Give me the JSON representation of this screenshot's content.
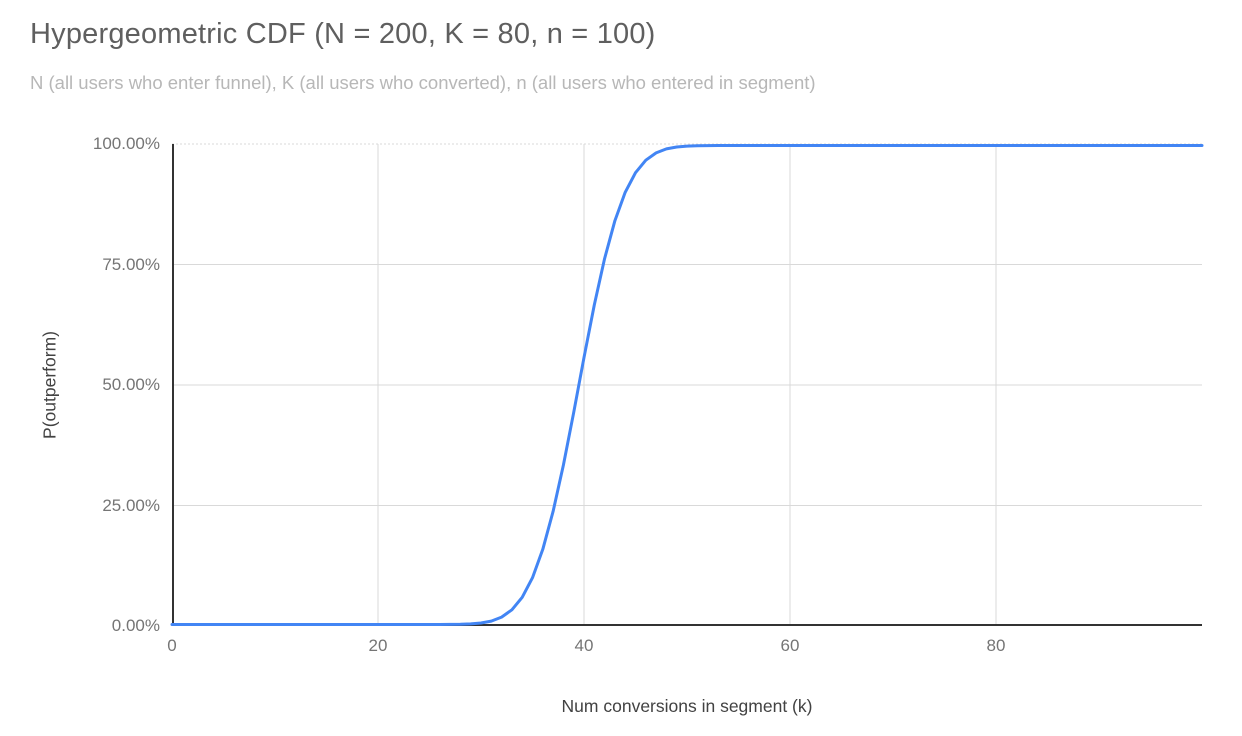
{
  "header": {
    "title": "Hypergeometric CDF (N = 200, K = 80, n = 100)",
    "subtitle": "N (all users who enter funnel), K (all users who converted), n (all users who entered in segment)"
  },
  "chart_data": {
    "type": "line",
    "title": "Hypergeometric CDF (N = 200, K = 80, n = 100)",
    "subtitle": "N (all users who enter funnel), K (all users who converted), n (all users who entered in segment)",
    "xlabel": "Num conversions in segment (k)",
    "ylabel": "P(outperform)",
    "xlim": [
      0,
      100
    ],
    "ylim": [
      0,
      1
    ],
    "x_ticks": [
      0,
      20,
      40,
      60,
      80
    ],
    "y_tick_labels": [
      "0.00%",
      "25.00%",
      "50.00%",
      "75.00%",
      "100.00%"
    ],
    "grid": "on",
    "legend_position": "none",
    "line_color": "#4285f4",
    "grid_color": "#d9d9d9",
    "axis_line_color": "#333333",
    "series": [
      {
        "name": "P(outperform)",
        "x": [
          0,
          25,
          26,
          27,
          28,
          29,
          30,
          31,
          32,
          33,
          34,
          35,
          36,
          37,
          38,
          39,
          40,
          41,
          42,
          43,
          44,
          45,
          46,
          47,
          48,
          49,
          50,
          51,
          52,
          53,
          54,
          100
        ],
        "y": [
          0,
          0.0,
          0.0001,
          0.0002,
          0.0005,
          0.0012,
          0.0031,
          0.0072,
          0.0154,
          0.0307,
          0.0567,
          0.0977,
          0.157,
          0.2361,
          0.3328,
          0.4426,
          0.5574,
          0.6672,
          0.7639,
          0.843,
          0.9023,
          0.9433,
          0.9693,
          0.9846,
          0.9928,
          0.9969,
          0.9988,
          0.9995,
          0.9998,
          0.9999,
          1.0,
          1.0
        ]
      }
    ]
  }
}
